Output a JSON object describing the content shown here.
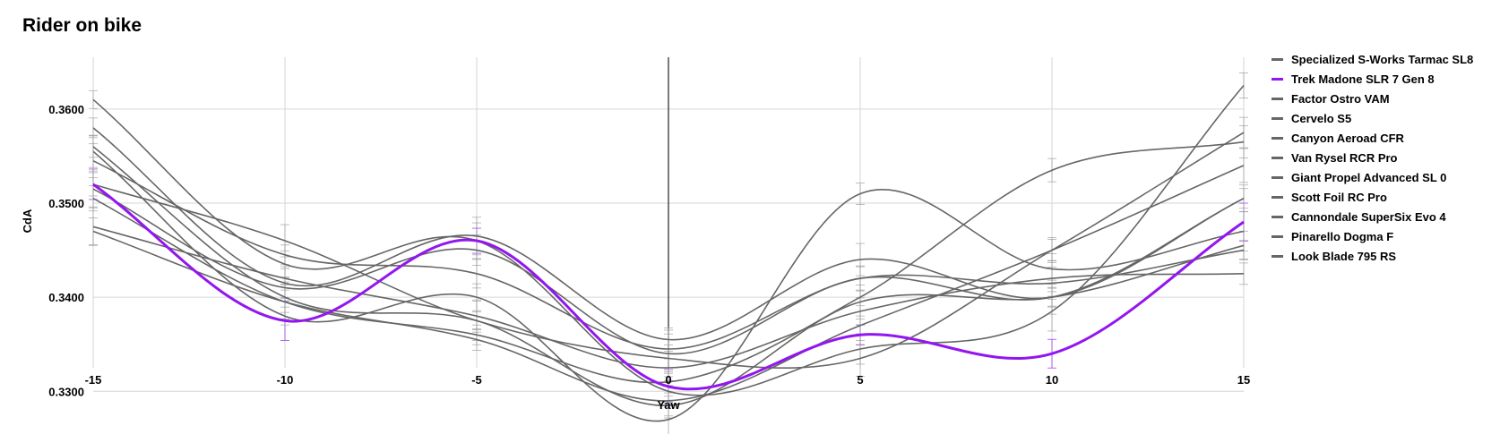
{
  "title": "Rider on bike",
  "chart_data": {
    "type": "line",
    "title": "Rider on bike",
    "xlabel": "Yaw",
    "ylabel": "CdA",
    "xlim": [
      -15,
      15
    ],
    "ylim": [
      0.3325,
      0.3655
    ],
    "x": [
      -15,
      -10,
      -5,
      0,
      5,
      10,
      15
    ],
    "x_ticks": [
      "-15",
      "-10",
      "-5",
      "0",
      "5",
      "10",
      "15"
    ],
    "y_ticks": [
      {
        "value": 0.33,
        "label": "0.3300"
      },
      {
        "value": 0.34,
        "label": "0.3400"
      },
      {
        "value": 0.35,
        "label": "0.3500"
      },
      {
        "value": 0.36,
        "label": "0.3600"
      }
    ],
    "grid": true,
    "legend_position": "right",
    "highlight_color": "#9316f0",
    "default_color": "#666666",
    "series": [
      {
        "name": "Specialized S-Works Tarmac SL8",
        "values": [
          0.361,
          0.3435,
          0.346,
          0.33,
          0.3345,
          0.3385,
          0.3625
        ]
      },
      {
        "name": "Trek Madone SLR 7 Gen 8",
        "values": [
          0.352,
          0.3375,
          0.346,
          0.3305,
          0.336,
          0.334,
          0.348
        ],
        "highlight": true
      },
      {
        "name": "Factor Ostro VAM",
        "values": [
          0.358,
          0.3415,
          0.3465,
          0.3355,
          0.344,
          0.34,
          0.3505
        ]
      },
      {
        "name": "Cervelo S5",
        "values": [
          0.3555,
          0.338,
          0.34,
          0.327,
          0.351,
          0.343,
          0.347
        ]
      },
      {
        "name": "Canyon Aeroad CFR",
        "values": [
          0.356,
          0.34,
          0.3375,
          0.3285,
          0.3395,
          0.34,
          0.3455
        ]
      },
      {
        "name": "Van Rysel RCR Pro",
        "values": [
          0.3545,
          0.3445,
          0.3425,
          0.3345,
          0.342,
          0.3415,
          0.345
        ]
      },
      {
        "name": "Giant Propel Advanced SL 0",
        "values": [
          0.352,
          0.346,
          0.3375,
          0.3335,
          0.3335,
          0.345,
          0.3575
        ]
      },
      {
        "name": "Scott Foil RC Pro",
        "values": [
          0.3515,
          0.341,
          0.345,
          0.334,
          0.342,
          0.34,
          0.3505
        ]
      },
      {
        "name": "Cannondale SuperSix Evo 4",
        "values": [
          0.3505,
          0.3395,
          0.336,
          0.331,
          0.34,
          0.3535,
          0.3565
        ]
      },
      {
        "name": "Pinarello Dogma F",
        "values": [
          0.3475,
          0.342,
          0.338,
          0.3325,
          0.3385,
          0.342,
          0.3425
        ]
      },
      {
        "name": "Look Blade 795 RS",
        "values": [
          0.347,
          0.3395,
          0.3355,
          0.329,
          0.337,
          0.345,
          0.354
        ]
      }
    ]
  }
}
